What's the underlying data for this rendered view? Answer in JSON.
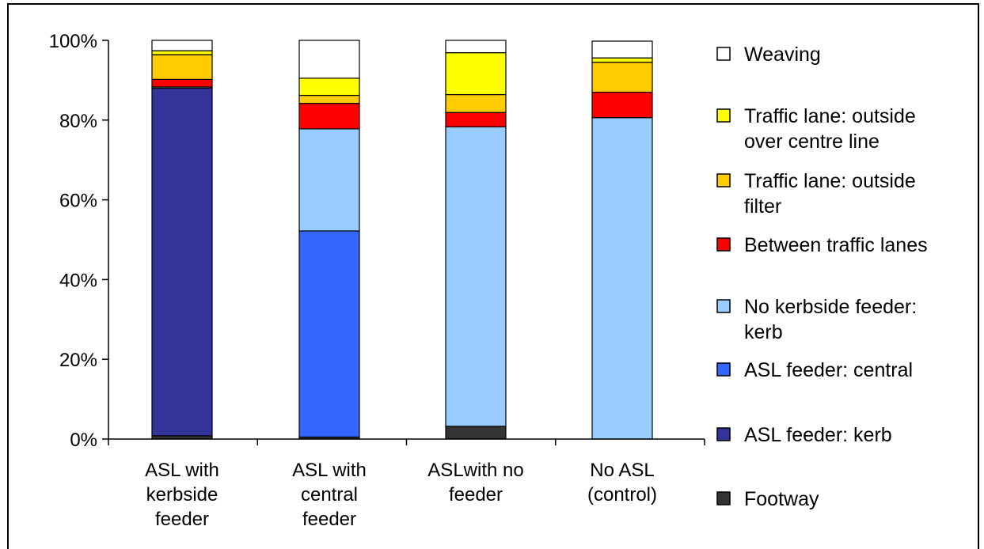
{
  "chart_data": {
    "type": "bar",
    "stacked": true,
    "ylim": [
      0,
      100
    ],
    "y_ticks": [
      "0%",
      "20%",
      "40%",
      "60%",
      "80%",
      "100%"
    ],
    "grid": false,
    "legend_position": "right",
    "categories": [
      [
        "ASL with",
        "kerbside",
        "feeder"
      ],
      [
        "ASL with",
        "central",
        "feeder"
      ],
      [
        "ASLwith no",
        "feeder"
      ],
      [
        "No ASL",
        "(control)"
      ]
    ],
    "series": [
      {
        "name": [
          "Footway"
        ],
        "color": "#333333",
        "values": [
          0.8,
          0.5,
          3.2,
          0.0
        ]
      },
      {
        "name": [
          "ASL feeder: kerb"
        ],
        "color": "#333399",
        "values": [
          87.2,
          0.0,
          0.0,
          0.0
        ]
      },
      {
        "name": [
          "ASL feeder: central"
        ],
        "color": "#3366FF",
        "values": [
          0.0,
          51.7,
          0.0,
          0.0
        ]
      },
      {
        "name": [
          "No kerbside feeder:",
          "kerb"
        ],
        "color": "#99CCFF",
        "values": [
          0.3,
          25.6,
          75.1,
          80.6
        ]
      },
      {
        "name": [
          "Between traffic lanes"
        ],
        "color": "#FF0000",
        "values": [
          1.9,
          6.4,
          3.6,
          6.4
        ]
      },
      {
        "name": [
          "Traffic lane: outside",
          "filter"
        ],
        "color": "#FFCC00",
        "values": [
          6.2,
          2.0,
          4.5,
          7.5
        ]
      },
      {
        "name": [
          "Traffic lane: outside",
          "over centre line"
        ],
        "color": "#FFFF00",
        "values": [
          1.0,
          4.3,
          10.5,
          1.1
        ]
      },
      {
        "name": [
          "Weaving"
        ],
        "color": "#FFFFFF",
        "values": [
          2.6,
          9.5,
          3.1,
          4.2
        ]
      }
    ]
  }
}
